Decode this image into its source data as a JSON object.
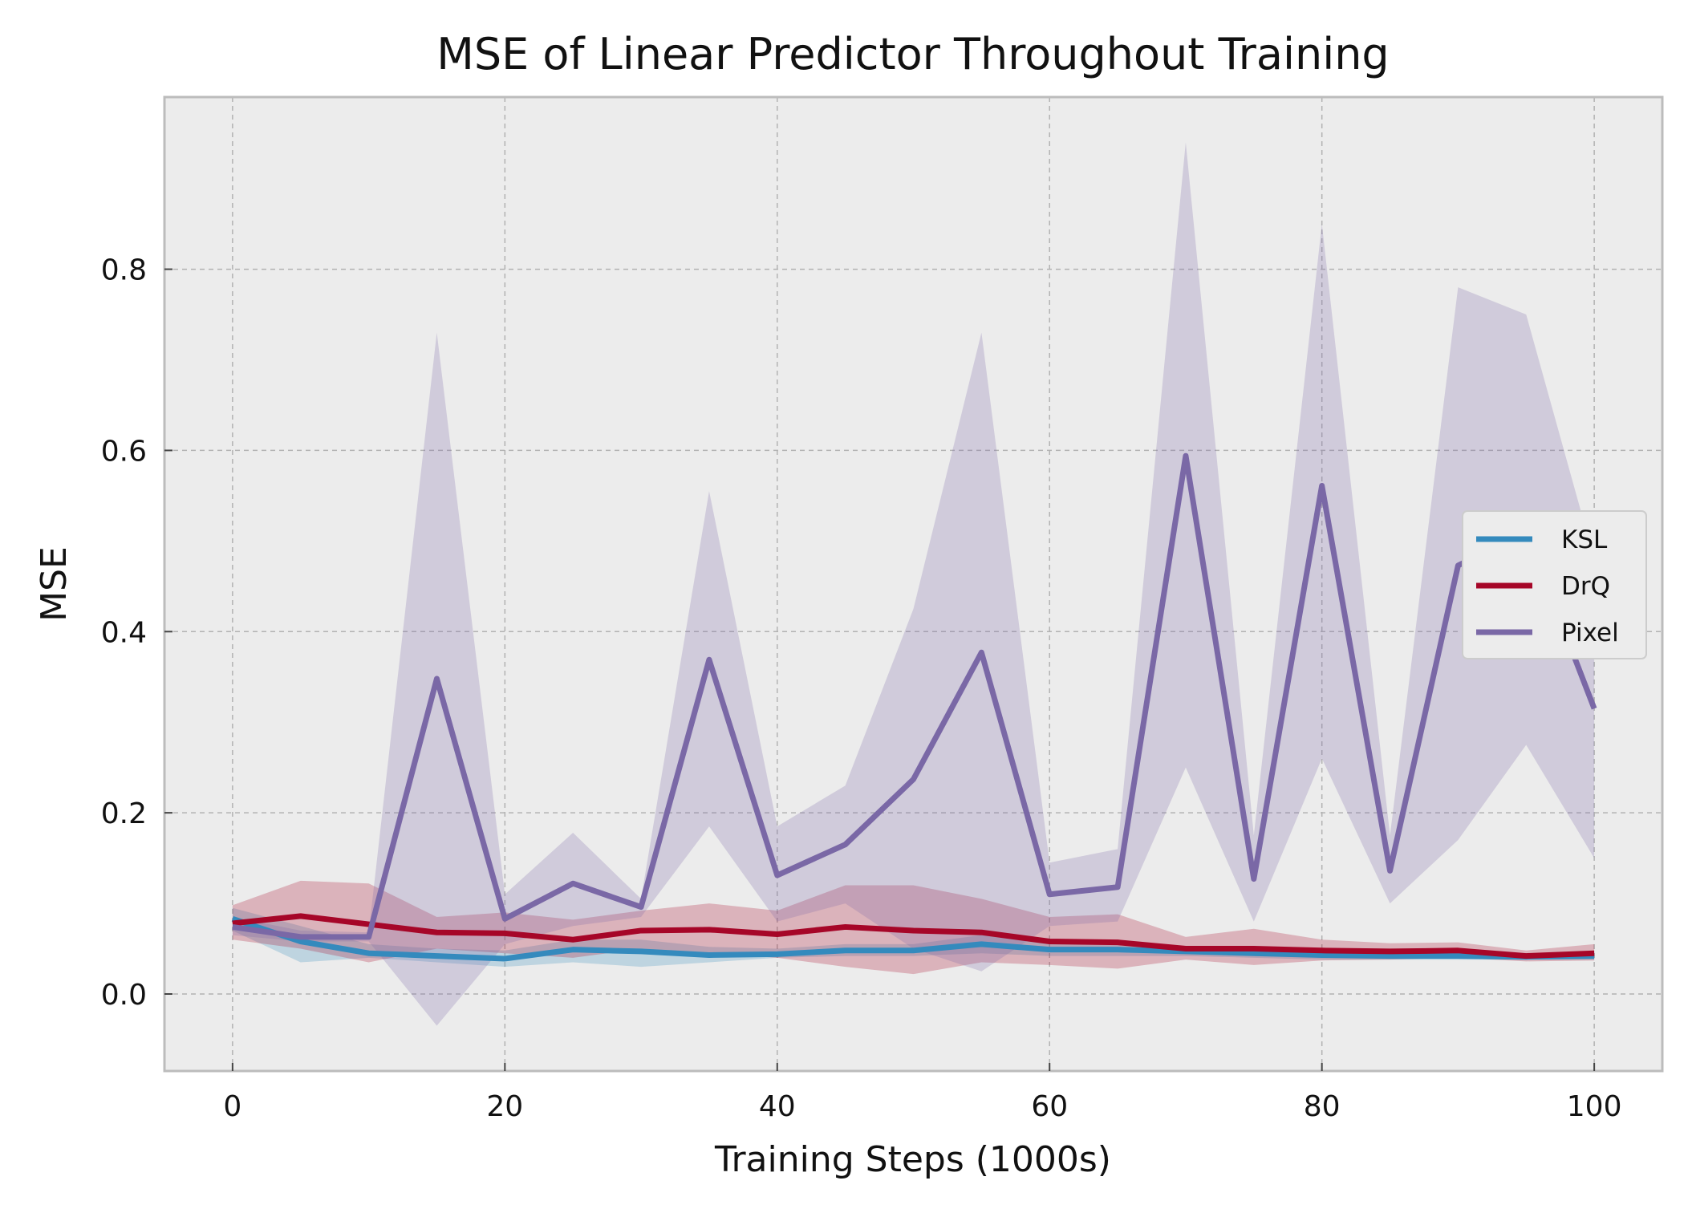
{
  "chart_data": {
    "type": "line",
    "title": "MSE of Linear Predictor Throughout Training",
    "xlabel": "Training Steps (1000s)",
    "ylabel": "MSE",
    "xlim": [
      -5,
      105
    ],
    "ylim": [
      -0.085,
      0.99
    ],
    "xticks": [
      0,
      20,
      40,
      60,
      80,
      100
    ],
    "xtick_labels": [
      "0",
      "20",
      "40",
      "60",
      "80",
      "100"
    ],
    "yticks": [
      0.0,
      0.2,
      0.4,
      0.6,
      0.8
    ],
    "ytick_labels": [
      "0.0",
      "0.2",
      "0.4",
      "0.6",
      "0.8"
    ],
    "grid": true,
    "legend_position": "right",
    "background": "#ececec",
    "x": [
      0,
      5,
      10,
      15,
      20,
      25,
      30,
      35,
      40,
      45,
      50,
      55,
      60,
      65,
      70,
      75,
      80,
      85,
      90,
      95,
      100
    ],
    "series": [
      {
        "name": "KSL",
        "color": "#348abd",
        "values": [
          0.083,
          0.058,
          0.045,
          0.042,
          0.039,
          0.049,
          0.047,
          0.043,
          0.044,
          0.048,
          0.048,
          0.055,
          0.049,
          0.049,
          0.047,
          0.045,
          0.043,
          0.042,
          0.042,
          0.041,
          0.042
        ],
        "lower": [
          0.07,
          0.035,
          0.04,
          0.035,
          0.03,
          0.035,
          0.03,
          0.035,
          0.04,
          0.042,
          0.042,
          0.045,
          0.042,
          0.042,
          0.042,
          0.04,
          0.038,
          0.038,
          0.038,
          0.038,
          0.038
        ],
        "upper": [
          0.095,
          0.075,
          0.055,
          0.05,
          0.048,
          0.06,
          0.06,
          0.052,
          0.05,
          0.055,
          0.055,
          0.065,
          0.056,
          0.056,
          0.052,
          0.05,
          0.048,
          0.047,
          0.047,
          0.045,
          0.047
        ]
      },
      {
        "name": "DrQ",
        "color": "#a60628",
        "values": [
          0.078,
          0.086,
          0.077,
          0.068,
          0.067,
          0.06,
          0.07,
          0.071,
          0.066,
          0.074,
          0.07,
          0.068,
          0.058,
          0.057,
          0.05,
          0.05,
          0.048,
          0.047,
          0.048,
          0.042,
          0.045
        ],
        "lower": [
          0.06,
          0.05,
          0.035,
          0.05,
          0.045,
          0.04,
          0.05,
          0.045,
          0.04,
          0.03,
          0.022,
          0.035,
          0.032,
          0.028,
          0.038,
          0.032,
          0.037,
          0.038,
          0.04,
          0.036,
          0.037
        ],
        "upper": [
          0.098,
          0.125,
          0.122,
          0.085,
          0.09,
          0.082,
          0.092,
          0.1,
          0.092,
          0.12,
          0.12,
          0.105,
          0.085,
          0.088,
          0.063,
          0.072,
          0.06,
          0.056,
          0.057,
          0.048,
          0.055
        ]
      },
      {
        "name": "Pixel",
        "color": "#7a68a6",
        "values": [
          0.074,
          0.063,
          0.063,
          0.348,
          0.083,
          0.122,
          0.096,
          0.369,
          0.131,
          0.165,
          0.237,
          0.377,
          0.11,
          0.118,
          0.594,
          0.127,
          0.561,
          0.136,
          0.473,
          0.51,
          0.315
        ],
        "lower": [
          0.065,
          0.058,
          0.058,
          -0.035,
          0.055,
          0.075,
          0.085,
          0.185,
          0.08,
          0.1,
          0.05,
          0.025,
          0.075,
          0.08,
          0.25,
          0.08,
          0.26,
          0.1,
          0.17,
          0.275,
          0.15
        ],
        "upper": [
          0.085,
          0.07,
          0.068,
          0.73,
          0.11,
          0.178,
          0.105,
          0.555,
          0.185,
          0.23,
          0.425,
          0.73,
          0.145,
          0.16,
          0.94,
          0.175,
          0.85,
          0.175,
          0.78,
          0.75,
          0.48
        ]
      }
    ]
  }
}
